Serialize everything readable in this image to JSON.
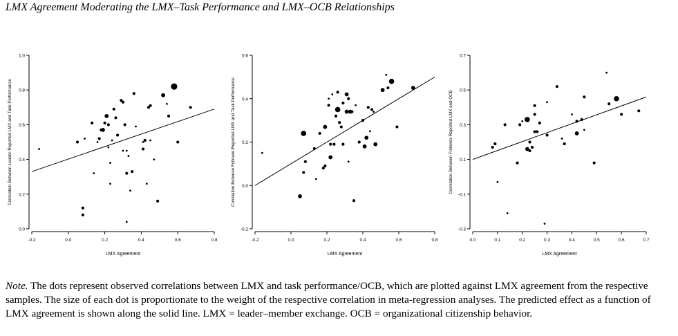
{
  "figure": {
    "title": "LMX Agreement Moderating the LMX–Task Performance and LMX–OCB Relationships",
    "note_label": "Note.",
    "note_text": "The dots represent observed correlations between LMX and task performance/OCB, which are plotted against LMX agreement from the respective samples. The size of each dot is proportionate to the weight of the respective correlation in meta-regression analyses. The predicted effect as a function of LMX agreement is shown along the solid line. LMX = leader–member exchange. OCB = organizational citizenship behavior."
  },
  "chart_data": [
    {
      "type": "scatter",
      "title": "",
      "xlabel": "LMX Agreement",
      "ylabel": "Correlation Between Leader-Reported LMX and Task Performance",
      "xlim": [
        -0.2,
        0.8
      ],
      "ylim": [
        0.0,
        1.0
      ],
      "xticks": [
        "-0.2",
        "0.0",
        "0.2",
        "0.4",
        "0.6",
        "0.8"
      ],
      "yticks": [
        "0.0",
        "0.2",
        "0.4",
        "0.6",
        "0.8",
        "1.0"
      ],
      "xtick_values": [
        -0.2,
        0.0,
        0.2,
        0.4,
        0.6,
        0.8
      ],
      "ytick_values": [
        0.0,
        0.2,
        0.4,
        0.6,
        0.8,
        1.0
      ],
      "line": {
        "x": [
          -0.2,
          0.8
        ],
        "y": [
          0.33,
          0.69
        ]
      },
      "points": [
        {
          "x": -0.16,
          "y": 0.46,
          "w": 1
        },
        {
          "x": 0.05,
          "y": 0.5,
          "w": 2
        },
        {
          "x": 0.09,
          "y": 0.52,
          "w": 1
        },
        {
          "x": 0.08,
          "y": 0.12,
          "w": 2
        },
        {
          "x": 0.08,
          "y": 0.08,
          "w": 2
        },
        {
          "x": 0.13,
          "y": 0.61,
          "w": 2
        },
        {
          "x": 0.14,
          "y": 0.32,
          "w": 1
        },
        {
          "x": 0.16,
          "y": 0.5,
          "w": 1
        },
        {
          "x": 0.17,
          "y": 0.52,
          "w": 2
        },
        {
          "x": 0.18,
          "y": 0.57,
          "w": 2
        },
        {
          "x": 0.19,
          "y": 0.57,
          "w": 3
        },
        {
          "x": 0.2,
          "y": 0.61,
          "w": 2
        },
        {
          "x": 0.21,
          "y": 0.65,
          "w": 3
        },
        {
          "x": 0.22,
          "y": 0.6,
          "w": 2
        },
        {
          "x": 0.22,
          "y": 0.47,
          "w": 1
        },
        {
          "x": 0.23,
          "y": 0.38,
          "w": 1
        },
        {
          "x": 0.23,
          "y": 0.26,
          "w": 1
        },
        {
          "x": 0.24,
          "y": 0.51,
          "w": 1
        },
        {
          "x": 0.25,
          "y": 0.69,
          "w": 2
        },
        {
          "x": 0.26,
          "y": 0.64,
          "w": 2
        },
        {
          "x": 0.27,
          "y": 0.54,
          "w": 2
        },
        {
          "x": 0.29,
          "y": 0.74,
          "w": 2
        },
        {
          "x": 0.3,
          "y": 0.73,
          "w": 2
        },
        {
          "x": 0.3,
          "y": 0.45,
          "w": 1
        },
        {
          "x": 0.31,
          "y": 0.6,
          "w": 2
        },
        {
          "x": 0.32,
          "y": 0.45,
          "w": 1
        },
        {
          "x": 0.32,
          "y": 0.32,
          "w": 2
        },
        {
          "x": 0.32,
          "y": 0.04,
          "w": 1
        },
        {
          "x": 0.33,
          "y": 0.42,
          "w": 1
        },
        {
          "x": 0.34,
          "y": 0.22,
          "w": 1
        },
        {
          "x": 0.35,
          "y": 0.33,
          "w": 2
        },
        {
          "x": 0.36,
          "y": 0.78,
          "w": 2
        },
        {
          "x": 0.37,
          "y": 0.59,
          "w": 1
        },
        {
          "x": 0.41,
          "y": 0.5,
          "w": 1
        },
        {
          "x": 0.41,
          "y": 0.46,
          "w": 2
        },
        {
          "x": 0.42,
          "y": 0.51,
          "w": 2
        },
        {
          "x": 0.43,
          "y": 0.26,
          "w": 1
        },
        {
          "x": 0.44,
          "y": 0.7,
          "w": 2
        },
        {
          "x": 0.45,
          "y": 0.71,
          "w": 2
        },
        {
          "x": 0.45,
          "y": 0.51,
          "w": 1
        },
        {
          "x": 0.47,
          "y": 0.4,
          "w": 1
        },
        {
          "x": 0.49,
          "y": 0.16,
          "w": 2
        },
        {
          "x": 0.52,
          "y": 0.77,
          "w": 3
        },
        {
          "x": 0.54,
          "y": 0.72,
          "w": 1
        },
        {
          "x": 0.55,
          "y": 0.65,
          "w": 2
        },
        {
          "x": 0.58,
          "y": 0.82,
          "w": 5
        },
        {
          "x": 0.6,
          "y": 0.5,
          "w": 2
        },
        {
          "x": 0.67,
          "y": 0.7,
          "w": 2
        }
      ]
    },
    {
      "type": "scatter",
      "title": "",
      "xlabel": "LMX Agreement",
      "ylabel": "Correlation Between Follower-Reported LMX and Task Performance",
      "xlim": [
        -0.2,
        0.8
      ],
      "ylim": [
        -0.2,
        0.6
      ],
      "xticks": [
        "-0.2",
        "0.0",
        "0.2",
        "0.4",
        "0.6",
        "0.8"
      ],
      "yticks": [
        "-0.2",
        "0.0",
        "0.2",
        "0.4",
        "0.6"
      ],
      "xtick_values": [
        -0.2,
        0.0,
        0.2,
        0.4,
        0.6,
        0.8
      ],
      "ytick_values": [
        -0.2,
        0.0,
        0.2,
        0.4,
        0.6
      ],
      "line": {
        "x": [
          -0.2,
          0.8
        ],
        "y": [
          0.0,
          0.5
        ]
      },
      "points": [
        {
          "x": -0.16,
          "y": 0.15,
          "w": 1
        },
        {
          "x": 0.05,
          "y": -0.05,
          "w": 3
        },
        {
          "x": 0.07,
          "y": 0.24,
          "w": 4
        },
        {
          "x": 0.07,
          "y": 0.06,
          "w": 2
        },
        {
          "x": 0.08,
          "y": 0.11,
          "w": 2
        },
        {
          "x": 0.13,
          "y": 0.17,
          "w": 2
        },
        {
          "x": 0.14,
          "y": 0.03,
          "w": 1
        },
        {
          "x": 0.16,
          "y": 0.24,
          "w": 2
        },
        {
          "x": 0.18,
          "y": 0.08,
          "w": 2
        },
        {
          "x": 0.19,
          "y": 0.27,
          "w": 3
        },
        {
          "x": 0.19,
          "y": 0.09,
          "w": 2
        },
        {
          "x": 0.21,
          "y": 0.37,
          "w": 2
        },
        {
          "x": 0.21,
          "y": 0.4,
          "w": 1
        },
        {
          "x": 0.22,
          "y": 0.13,
          "w": 3
        },
        {
          "x": 0.22,
          "y": 0.19,
          "w": 2
        },
        {
          "x": 0.23,
          "y": 0.42,
          "w": 1
        },
        {
          "x": 0.24,
          "y": 0.19,
          "w": 2
        },
        {
          "x": 0.25,
          "y": 0.32,
          "w": 2
        },
        {
          "x": 0.26,
          "y": 0.43,
          "w": 2
        },
        {
          "x": 0.26,
          "y": 0.35,
          "w": 4
        },
        {
          "x": 0.27,
          "y": 0.29,
          "w": 2
        },
        {
          "x": 0.28,
          "y": 0.27,
          "w": 2
        },
        {
          "x": 0.29,
          "y": 0.38,
          "w": 2
        },
        {
          "x": 0.29,
          "y": 0.19,
          "w": 2
        },
        {
          "x": 0.31,
          "y": 0.34,
          "w": 3
        },
        {
          "x": 0.31,
          "y": 0.42,
          "w": 3
        },
        {
          "x": 0.32,
          "y": 0.4,
          "w": 2
        },
        {
          "x": 0.32,
          "y": 0.11,
          "w": 1
        },
        {
          "x": 0.33,
          "y": 0.34,
          "w": 3
        },
        {
          "x": 0.34,
          "y": 0.34,
          "w": 2
        },
        {
          "x": 0.35,
          "y": -0.07,
          "w": 2
        },
        {
          "x": 0.36,
          "y": 0.37,
          "w": 1
        },
        {
          "x": 0.38,
          "y": 0.2,
          "w": 2
        },
        {
          "x": 0.4,
          "y": 0.3,
          "w": 2
        },
        {
          "x": 0.41,
          "y": 0.18,
          "w": 3
        },
        {
          "x": 0.42,
          "y": 0.22,
          "w": 3
        },
        {
          "x": 0.43,
          "y": 0.36,
          "w": 2
        },
        {
          "x": 0.44,
          "y": 0.25,
          "w": 1
        },
        {
          "x": 0.45,
          "y": 0.35,
          "w": 2
        },
        {
          "x": 0.46,
          "y": 0.34,
          "w": 1
        },
        {
          "x": 0.47,
          "y": 0.19,
          "w": 3
        },
        {
          "x": 0.51,
          "y": 0.44,
          "w": 3
        },
        {
          "x": 0.53,
          "y": 0.51,
          "w": 1
        },
        {
          "x": 0.54,
          "y": 0.45,
          "w": 2
        },
        {
          "x": 0.56,
          "y": 0.48,
          "w": 4
        },
        {
          "x": 0.59,
          "y": 0.27,
          "w": 2
        },
        {
          "x": 0.68,
          "y": 0.45,
          "w": 3
        }
      ]
    },
    {
      "type": "scatter",
      "title": "",
      "xlabel": "LMX Agreement",
      "ylabel": "Correlation Between Follower-Reported LMX and OCB",
      "xlim": [
        0.0,
        0.7
      ],
      "ylim": [
        -0.3,
        0.7
      ],
      "xticks": [
        "0.0",
        "0.1",
        "0.2",
        "0.3",
        "0.4",
        "0.5",
        "0.6",
        "0.7"
      ],
      "yticks": [
        "-0.3",
        "-0.1",
        "0.1",
        "0.3",
        "0.5",
        "0.7"
      ],
      "xtick_values": [
        0.0,
        0.1,
        0.2,
        0.3,
        0.4,
        0.5,
        0.6,
        0.7
      ],
      "ytick_values": [
        -0.3,
        -0.1,
        0.1,
        0.3,
        0.5,
        0.7
      ],
      "line": {
        "x": [
          0.0,
          0.7
        ],
        "y": [
          0.1,
          0.46
        ]
      },
      "points": [
        {
          "x": 0.08,
          "y": 0.17,
          "w": 2
        },
        {
          "x": 0.09,
          "y": 0.19,
          "w": 2
        },
        {
          "x": 0.1,
          "y": -0.03,
          "w": 1
        },
        {
          "x": 0.13,
          "y": 0.3,
          "w": 2
        },
        {
          "x": 0.14,
          "y": -0.21,
          "w": 1
        },
        {
          "x": 0.18,
          "y": 0.08,
          "w": 2
        },
        {
          "x": 0.19,
          "y": 0.3,
          "w": 2
        },
        {
          "x": 0.2,
          "y": 0.32,
          "w": 1
        },
        {
          "x": 0.22,
          "y": 0.16,
          "w": 3
        },
        {
          "x": 0.22,
          "y": 0.33,
          "w": 4
        },
        {
          "x": 0.23,
          "y": 0.2,
          "w": 2
        },
        {
          "x": 0.23,
          "y": 0.15,
          "w": 2
        },
        {
          "x": 0.24,
          "y": 0.17,
          "w": 2
        },
        {
          "x": 0.25,
          "y": 0.36,
          "w": 2
        },
        {
          "x": 0.25,
          "y": 0.41,
          "w": 2
        },
        {
          "x": 0.25,
          "y": 0.26,
          "w": 2
        },
        {
          "x": 0.26,
          "y": 0.26,
          "w": 2
        },
        {
          "x": 0.27,
          "y": 0.31,
          "w": 2
        },
        {
          "x": 0.29,
          "y": -0.27,
          "w": 1
        },
        {
          "x": 0.3,
          "y": 0.24,
          "w": 2
        },
        {
          "x": 0.3,
          "y": 0.43,
          "w": 1
        },
        {
          "x": 0.34,
          "y": 0.52,
          "w": 2
        },
        {
          "x": 0.36,
          "y": 0.22,
          "w": 1
        },
        {
          "x": 0.37,
          "y": 0.19,
          "w": 2
        },
        {
          "x": 0.4,
          "y": 0.36,
          "w": 1
        },
        {
          "x": 0.42,
          "y": 0.25,
          "w": 3
        },
        {
          "x": 0.42,
          "y": 0.32,
          "w": 2
        },
        {
          "x": 0.44,
          "y": 0.33,
          "w": 2
        },
        {
          "x": 0.45,
          "y": 0.46,
          "w": 2
        },
        {
          "x": 0.45,
          "y": 0.27,
          "w": 1
        },
        {
          "x": 0.49,
          "y": 0.08,
          "w": 2
        },
        {
          "x": 0.54,
          "y": 0.6,
          "w": 1
        },
        {
          "x": 0.55,
          "y": 0.42,
          "w": 2
        },
        {
          "x": 0.58,
          "y": 0.45,
          "w": 4
        },
        {
          "x": 0.6,
          "y": 0.36,
          "w": 2
        },
        {
          "x": 0.67,
          "y": 0.38,
          "w": 2
        }
      ]
    }
  ]
}
